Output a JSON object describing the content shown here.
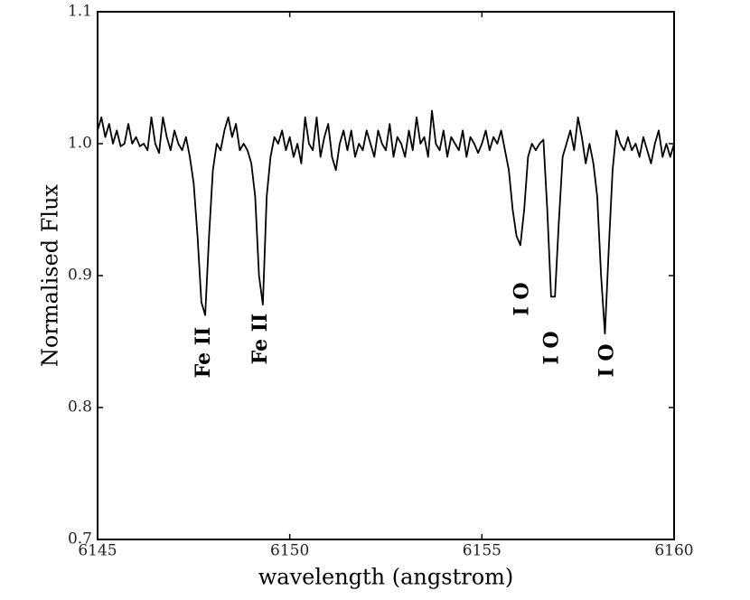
{
  "chart_data": {
    "type": "line",
    "xlabel": "wavelength (angstrom)",
    "ylabel": "Normalised Flux",
    "x": [
      6145.0,
      6145.1,
      6145.2,
      6145.3,
      6145.4,
      6145.5,
      6145.6,
      6145.7,
      6145.8,
      6145.9,
      6146.0,
      6146.1,
      6146.2,
      6146.3,
      6146.4,
      6146.5,
      6146.6,
      6146.7,
      6146.8,
      6146.9,
      6147.0,
      6147.1,
      6147.2,
      6147.3,
      6147.4,
      6147.5,
      6147.6,
      6147.7,
      6147.8,
      6147.9,
      6148.0,
      6148.1,
      6148.2,
      6148.3,
      6148.4,
      6148.5,
      6148.6,
      6148.7,
      6148.8,
      6148.9,
      6149.0,
      6149.1,
      6149.2,
      6149.3,
      6149.4,
      6149.5,
      6149.6,
      6149.7,
      6149.8,
      6149.9,
      6150.0,
      6150.1,
      6150.2,
      6150.3,
      6150.4,
      6150.5,
      6150.6,
      6150.7,
      6150.8,
      6150.9,
      6151.0,
      6151.1,
      6151.2,
      6151.3,
      6151.4,
      6151.5,
      6151.6,
      6151.7,
      6151.8,
      6151.9,
      6152.0,
      6152.1,
      6152.2,
      6152.3,
      6152.4,
      6152.5,
      6152.6,
      6152.7,
      6152.8,
      6152.9,
      6153.0,
      6153.1,
      6153.2,
      6153.3,
      6153.4,
      6153.5,
      6153.6,
      6153.7,
      6153.8,
      6153.9,
      6154.0,
      6154.1,
      6154.2,
      6154.3,
      6154.4,
      6154.5,
      6154.6,
      6154.7,
      6154.8,
      6154.9,
      6155.0,
      6155.1,
      6155.2,
      6155.3,
      6155.4,
      6155.5,
      6155.6,
      6155.7,
      6155.8,
      6155.9,
      6156.0,
      6156.1,
      6156.2,
      6156.3,
      6156.4,
      6156.5,
      6156.6,
      6156.7,
      6156.8,
      6156.9,
      6157.0,
      6157.1,
      6157.2,
      6157.3,
      6157.4,
      6157.5,
      6157.6,
      6157.7,
      6157.8,
      6157.9,
      6158.0,
      6158.1,
      6158.2,
      6158.3,
      6158.4,
      6158.5,
      6158.6,
      6158.7,
      6158.8,
      6158.9,
      6159.0,
      6159.1,
      6159.2,
      6159.3,
      6159.4,
      6159.5,
      6159.6,
      6159.7,
      6159.8,
      6159.9,
      6160.0
    ],
    "series": [
      {
        "color": "#000000",
        "values": [
          1.01,
          1.02,
          1.005,
          1.015,
          1.0,
          1.01,
          0.998,
          1.0,
          1.015,
          1.0,
          1.005,
          0.998,
          1.0,
          0.995,
          1.02,
          1.0,
          0.993,
          1.02,
          1.005,
          0.995,
          1.01,
          1.0,
          0.995,
          1.005,
          0.99,
          0.97,
          0.93,
          0.88,
          0.87,
          0.93,
          0.98,
          1.0,
          0.995,
          1.01,
          1.02,
          1.005,
          1.015,
          0.995,
          1.0,
          0.995,
          0.985,
          0.96,
          0.9,
          0.878,
          0.96,
          0.99,
          1.005,
          1.0,
          1.01,
          0.995,
          1.005,
          0.99,
          1.0,
          0.985,
          1.02,
          1.0,
          0.995,
          1.02,
          0.99,
          1.005,
          1.015,
          0.99,
          0.98,
          1.0,
          1.01,
          0.995,
          1.01,
          0.99,
          1.0,
          0.995,
          1.01,
          1.0,
          0.99,
          1.01,
          1.0,
          0.995,
          1.015,
          0.99,
          1.005,
          1.0,
          0.99,
          1.01,
          0.995,
          1.02,
          1.0,
          1.005,
          0.99,
          1.025,
          1.0,
          0.995,
          1.01,
          0.99,
          1.005,
          1.0,
          0.995,
          1.01,
          0.99,
          1.005,
          1.0,
          0.993,
          1.0,
          1.01,
          0.995,
          1.005,
          1.0,
          1.01,
          0.995,
          0.98,
          0.95,
          0.93,
          0.923,
          0.95,
          0.99,
          1.0,
          0.995,
          1.0,
          1.003,
          0.95,
          0.884,
          0.884,
          0.94,
          0.99,
          1.0,
          1.01,
          0.995,
          1.02,
          1.005,
          0.985,
          1.0,
          0.985,
          0.96,
          0.9,
          0.856,
          0.92,
          0.98,
          1.01,
          1.0,
          0.995,
          1.005,
          0.995,
          1.0,
          0.99,
          1.005,
          0.995,
          0.985,
          1.0,
          1.01,
          0.99,
          1.0,
          0.99,
          1.0
        ]
      }
    ],
    "xlim": [
      6145,
      6160
    ],
    "xticks": [
      6145,
      6150,
      6155,
      6160
    ],
    "ylim": [
      0.7,
      1.1
    ],
    "yticks": [
      0.7,
      0.8,
      0.9,
      {
        "value": 1,
        "label": "1.0"
      },
      1.1
    ],
    "annotations": [
      "Fe II",
      "Fe II",
      "O I",
      "O I",
      "O I"
    ]
  }
}
